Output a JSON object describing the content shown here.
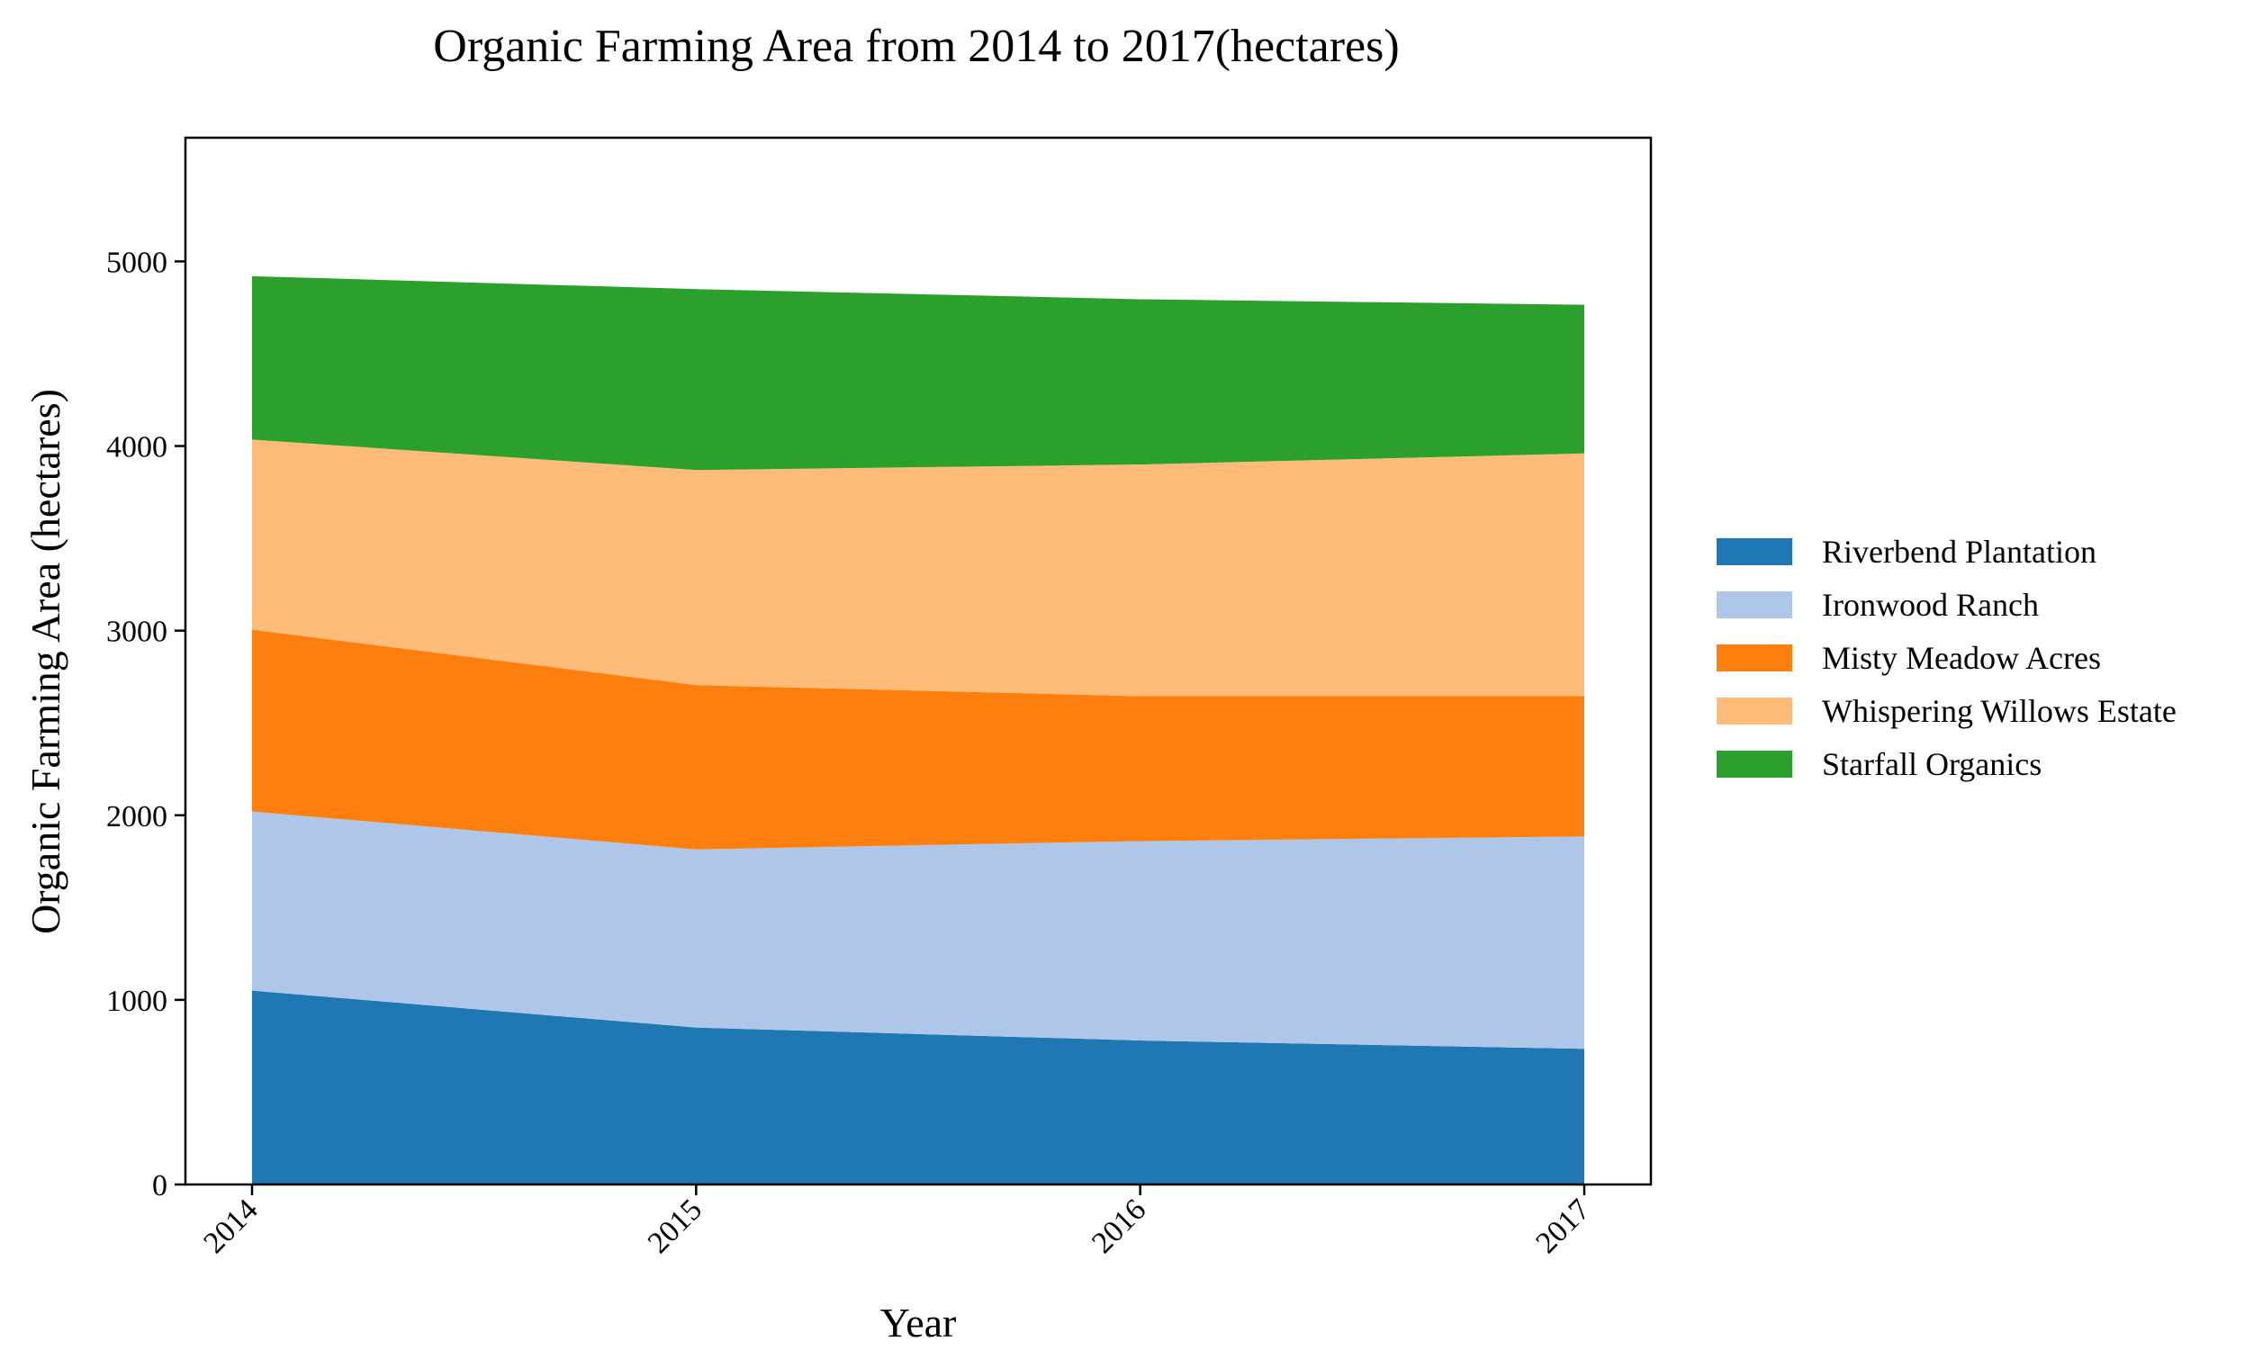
{
  "chart_data": {
    "type": "area",
    "stacked": true,
    "title": "Organic Farming Area from 2014 to 2017(hectares)",
    "xlabel": "Year",
    "ylabel": "Organic Farming Area (hectares)",
    "categories": [
      "2014",
      "2015",
      "2016",
      "2017"
    ],
    "ylim": [
      0,
      5670
    ],
    "yticks": [
      0,
      1000,
      2000,
      3000,
      4000,
      5000
    ],
    "grid": false,
    "legend_position": "right",
    "series": [
      {
        "name": "Riverbend Plantation",
        "color": "#1f77b4",
        "values": [
          1050,
          850,
          780,
          735
        ]
      },
      {
        "name": "Ironwood Ranch",
        "color": "#aec7e8",
        "values": [
          970,
          965,
          1080,
          1150
        ]
      },
      {
        "name": "Misty Meadow Acres",
        "color": "#ff7f0e",
        "values": [
          985,
          890,
          785,
          760
        ]
      },
      {
        "name": "Whispering Willows Estate",
        "color": "#ffbb78",
        "values": [
          1030,
          1165,
          1255,
          1315
        ]
      },
      {
        "name": "Starfall Organics",
        "color": "#2ca02c",
        "values": [
          885,
          980,
          895,
          805
        ]
      }
    ]
  }
}
